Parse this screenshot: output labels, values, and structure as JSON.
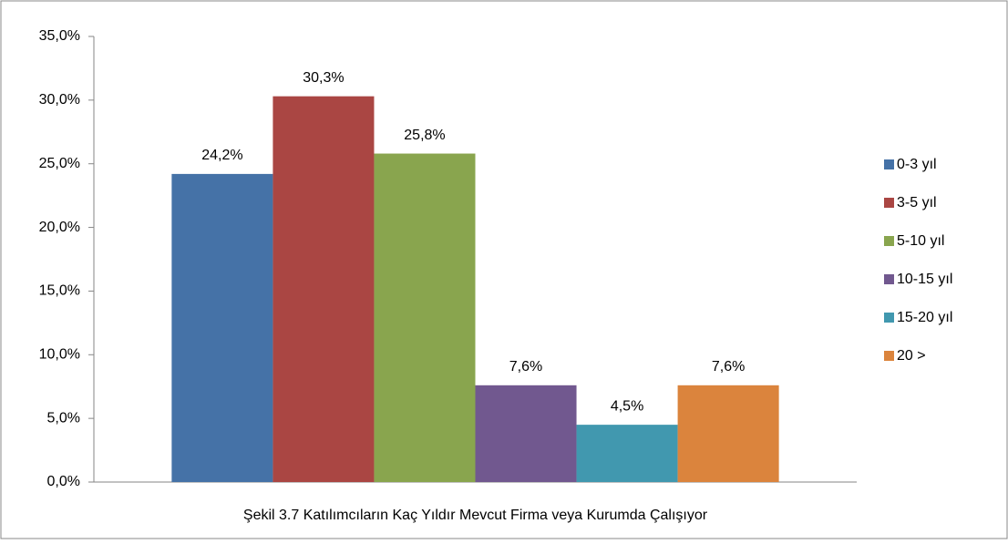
{
  "chart_data": {
    "type": "bar",
    "categories": [
      "Şekil 3.7 Katılımcıların Kaç Yıldır Mevcut Firma veya Kurumda Çalışıyor"
    ],
    "series": [
      {
        "name": "0-3 yıl",
        "color": "#4572a7",
        "values": [
          24.2
        ],
        "value_labels": [
          "24,2%"
        ]
      },
      {
        "name": "3-5 yıl",
        "color": "#aa4643",
        "values": [
          30.3
        ],
        "value_labels": [
          "30,3%"
        ]
      },
      {
        "name": "5-10 yıl",
        "color": "#89a54e",
        "values": [
          25.8
        ],
        "value_labels": [
          "25,8%"
        ]
      },
      {
        "name": "10-15 yıl",
        "color": "#71588f",
        "values": [
          7.6
        ],
        "value_labels": [
          "7,6%"
        ]
      },
      {
        "name": "15-20 yıl",
        "color": "#4198af",
        "values": [
          4.5
        ],
        "value_labels": [
          "4,5%"
        ]
      },
      {
        "name": "20 >",
        "color": "#db843d",
        "values": [
          7.6
        ],
        "value_labels": [
          "7,6%"
        ]
      }
    ],
    "ylim": [
      0,
      35
    ],
    "yticks": [
      {
        "value": 0,
        "label": "0,0%"
      },
      {
        "value": 5,
        "label": "5,0%"
      },
      {
        "value": 10,
        "label": "10,0%"
      },
      {
        "value": 15,
        "label": "15,0%"
      },
      {
        "value": 20,
        "label": "20,0%"
      },
      {
        "value": 25,
        "label": "25,0%"
      },
      {
        "value": 30,
        "label": "30,0%"
      },
      {
        "value": 35,
        "label": "35,0%"
      }
    ],
    "grid": false,
    "legend": "right"
  }
}
